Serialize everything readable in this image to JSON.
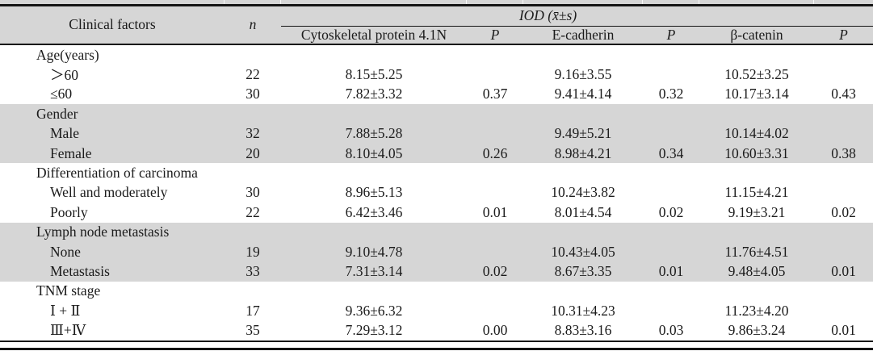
{
  "table": {
    "title_columns": {
      "clinical_factors": "Clinical factors",
      "n": "n",
      "iod_spanner": "IOD (x̄±s)",
      "sub_columns": [
        "Cytoskeletal protein 4.1N",
        "P",
        "E-cadherin",
        "P",
        "β-catenin",
        "P"
      ]
    },
    "sections": [
      {
        "group": "Age(years)",
        "shaded": false,
        "rows": [
          {
            "label": "＞60",
            "values": [
              "22",
              "8.15±5.25",
              "",
              "9.16±3.55",
              "",
              "10.52±3.25",
              ""
            ]
          },
          {
            "label": "≤60",
            "values": [
              "30",
              "7.82±3.32",
              "0.37",
              "9.41±4.14",
              "0.32",
              "10.17±3.14",
              "0.43"
            ]
          }
        ]
      },
      {
        "group": "Gender",
        "shaded": true,
        "rows": [
          {
            "label": "Male",
            "values": [
              "32",
              "7.88±5.28",
              "",
              "9.49±5.21",
              "",
              "10.14±4.02",
              ""
            ]
          },
          {
            "label": "Female",
            "values": [
              "20",
              "8.10±4.05",
              "0.26",
              "8.98±4.21",
              "0.34",
              "10.60±3.31",
              "0.38"
            ]
          }
        ]
      },
      {
        "group": "Differentiation of carcinoma",
        "shaded": false,
        "rows": [
          {
            "label": "Well and moderately",
            "values": [
              "30",
              "8.96±5.13",
              "",
              "10.24±3.82",
              "",
              "11.15±4.21",
              ""
            ]
          },
          {
            "label": "Poorly",
            "values": [
              "22",
              "6.42±3.46",
              "0.01",
              "8.01±4.54",
              "0.02",
              "9.19±3.21",
              "0.02"
            ]
          }
        ]
      },
      {
        "group": "Lymph node metastasis",
        "shaded": true,
        "rows": [
          {
            "label": "None",
            "values": [
              "19",
              "9.10±4.78",
              "",
              "10.43±4.05",
              "",
              "11.76±4.51",
              ""
            ]
          },
          {
            "label": "Metastasis",
            "values": [
              "33",
              "7.31±3.14",
              "0.02",
              "8.67±3.35",
              "0.01",
              "9.48±4.05",
              "0.01"
            ]
          }
        ]
      },
      {
        "group": "TNM stage",
        "shaded": false,
        "rows": [
          {
            "label": "Ⅰ + Ⅱ",
            "values": [
              "17",
              "9.36±6.32",
              "",
              "10.31±4.23",
              "",
              "11.23±4.20",
              ""
            ]
          },
          {
            "label": "Ⅲ+Ⅳ",
            "values": [
              "35",
              "7.29±3.12",
              "0.00",
              "8.83±3.16",
              "0.03",
              "9.86±3.24",
              "0.01"
            ]
          }
        ]
      }
    ],
    "colors": {
      "band_gray": "#d6d6d6",
      "rule_black": "#151515",
      "text": "#1b1b1b"
    }
  }
}
